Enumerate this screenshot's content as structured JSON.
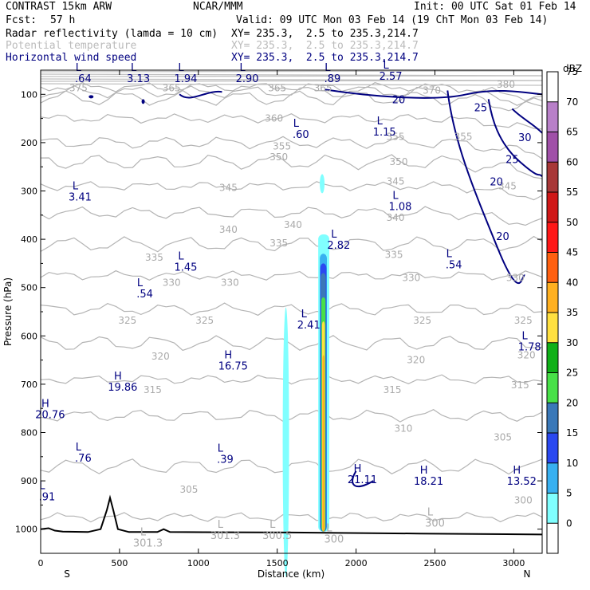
{
  "header": {
    "model": "CONTRAST 15km ARW",
    "org": "NCAR/MMM",
    "init": "Init: 00 UTC Sat 01 Feb 14",
    "fcst_label": "Fcst:",
    "fcst_value": "57 h",
    "valid": "Valid: 09 UTC Mon 03 Feb 14 (19 ChT Mon 03 Feb 14)",
    "field1": "Radar reflectivity (lamda = 10 cm)",
    "field2": "Potential temperature",
    "field3": "Horizontal wind speed",
    "xy1": "XY= 235.3,  2.5 to 235.3,214.7",
    "xy2": "XY= 235.3,  2.5 to 235.3,214.7",
    "xy3": "XY= 235.3,  2.5 to 235.3,214.7",
    "colors": {
      "field1": "#000000",
      "field2": "#bbbbbb",
      "field3": "#000080"
    }
  },
  "chart_data": {
    "type": "cross-section",
    "xlabel": "Distance (km)",
    "ylabel": "Pressure (hPa)",
    "x_ticks": [
      "0",
      "500",
      "1000",
      "1500",
      "2000",
      "2500",
      "3000"
    ],
    "y_ticks": [
      "100",
      "200",
      "300",
      "400",
      "500",
      "600",
      "700",
      "800",
      "900",
      "1000"
    ],
    "xlim": [
      0,
      3180
    ],
    "ylim": [
      1050,
      50
    ],
    "x_end_labels": {
      "left": "S",
      "right": "N"
    },
    "theta_labels": [
      {
        "v": "375",
        "x": 240,
        "p": 87
      },
      {
        "v": "365",
        "x": 830,
        "p": 87
      },
      {
        "v": "365",
        "x": 1500,
        "p": 87
      },
      {
        "v": "365",
        "x": 1790,
        "p": 87
      },
      {
        "v": "380",
        "x": 2950,
        "p": 80
      },
      {
        "v": "370",
        "x": 2480,
        "p": 92
      },
      {
        "v": "360",
        "x": 1480,
        "p": 150
      },
      {
        "v": "355",
        "x": 1530,
        "p": 208
      },
      {
        "v": "355",
        "x": 2250,
        "p": 188
      },
      {
        "v": "355",
        "x": 2680,
        "p": 188
      },
      {
        "v": "350",
        "x": 2270,
        "p": 240
      },
      {
        "v": "350",
        "x": 1510,
        "p": 230
      },
      {
        "v": "345",
        "x": 1190,
        "p": 293
      },
      {
        "v": "345",
        "x": 2250,
        "p": 280
      },
      {
        "v": "345",
        "x": 2960,
        "p": 290
      },
      {
        "v": "340",
        "x": 1600,
        "p": 370
      },
      {
        "v": "340",
        "x": 1190,
        "p": 380
      },
      {
        "v": "340",
        "x": 2250,
        "p": 355
      },
      {
        "v": "335",
        "x": 1510,
        "p": 408
      },
      {
        "v": "335",
        "x": 2240,
        "p": 432
      },
      {
        "v": "335",
        "x": 720,
        "p": 438
      },
      {
        "v": "330",
        "x": 830,
        "p": 490
      },
      {
        "v": "330",
        "x": 1200,
        "p": 490
      },
      {
        "v": "330",
        "x": 2350,
        "p": 480
      },
      {
        "v": "330",
        "x": 3010,
        "p": 480
      },
      {
        "v": "325",
        "x": 550,
        "p": 568
      },
      {
        "v": "325",
        "x": 1040,
        "p": 568
      },
      {
        "v": "325",
        "x": 2420,
        "p": 568
      },
      {
        "v": "325",
        "x": 3060,
        "p": 568
      },
      {
        "v": "320",
        "x": 760,
        "p": 642
      },
      {
        "v": "320",
        "x": 2380,
        "p": 650
      },
      {
        "v": "320",
        "x": 3080,
        "p": 640
      },
      {
        "v": "315",
        "x": 710,
        "p": 712
      },
      {
        "v": "315",
        "x": 2230,
        "p": 712
      },
      {
        "v": "315",
        "x": 3040,
        "p": 702
      },
      {
        "v": "310",
        "x": 2300,
        "p": 792
      },
      {
        "v": "305",
        "x": 940,
        "p": 918
      },
      {
        "v": "305",
        "x": 2930,
        "p": 810
      },
      {
        "v": "300",
        "x": 3060,
        "p": 940
      }
    ],
    "wind_labels": [
      {
        "v": "20",
        "x": 2270,
        "p": 112
      },
      {
        "v": "25",
        "x": 2790,
        "p": 128
      },
      {
        "v": "30",
        "x": 3070,
        "p": 190
      },
      {
        "v": "25",
        "x": 2990,
        "p": 236
      },
      {
        "v": "20",
        "x": 2890,
        "p": 282
      },
      {
        "v": "20",
        "x": 2930,
        "p": 395
      }
    ],
    "extrema": [
      {
        "t": "L",
        "v": ".64",
        "x": 270,
        "p": 75,
        "c": "#000080"
      },
      {
        "t": "L",
        "v": "3.13",
        "x": 620,
        "p": 75,
        "c": "#000080"
      },
      {
        "t": "L",
        "v": "1.94",
        "x": 920,
        "p": 75,
        "c": "#000080"
      },
      {
        "t": "L",
        "v": "2.90",
        "x": 1310,
        "p": 75,
        "c": "#000080"
      },
      {
        "t": "L",
        "v": ".89",
        "x": 1850,
        "p": 75,
        "c": "#000080"
      },
      {
        "t": "L",
        "v": "2.57",
        "x": 2220,
        "p": 70,
        "c": "#000080"
      },
      {
        "t": "L",
        "v": ".60",
        "x": 1650,
        "p": 190,
        "c": "#000080"
      },
      {
        "t": "L",
        "v": "1.15",
        "x": 2180,
        "p": 185,
        "c": "#000080"
      },
      {
        "t": "L",
        "v": "3.41",
        "x": 250,
        "p": 320,
        "c": "#000080"
      },
      {
        "t": "L",
        "v": "1.08",
        "x": 2280,
        "p": 340,
        "c": "#000080"
      },
      {
        "t": "L",
        "v": "2.82",
        "x": 1890,
        "p": 420,
        "c": "#000080"
      },
      {
        "t": "L",
        "v": "1.45",
        "x": 920,
        "p": 465,
        "c": "#000080"
      },
      {
        "t": "L",
        "v": ".54",
        "x": 2620,
        "p": 460,
        "c": "#000080"
      },
      {
        "t": "L",
        "v": ".54",
        "x": 660,
        "p": 520,
        "c": "#000080"
      },
      {
        "t": "L",
        "v": "2.41",
        "x": 1700,
        "p": 585,
        "c": "#000080"
      },
      {
        "t": "L",
        "v": "1.78",
        "x": 3100,
        "p": 630,
        "c": "#000080"
      },
      {
        "t": "H",
        "v": "16.75",
        "x": 1220,
        "p": 670,
        "c": "#000080"
      },
      {
        "t": "H",
        "v": "19.86",
        "x": 520,
        "p": 713,
        "c": "#000080"
      },
      {
        "t": "H",
        "v": "20.76",
        "x": 60,
        "p": 770,
        "c": "#000080"
      },
      {
        "t": "L",
        "v": ".76",
        "x": 270,
        "p": 860,
        "c": "#000080"
      },
      {
        "t": "L",
        "v": ".39",
        "x": 1170,
        "p": 863,
        "c": "#000080"
      },
      {
        "t": "H",
        "v": "21.11",
        "x": 2040,
        "p": 905,
        "c": "#000080"
      },
      {
        "t": "H",
        "v": "18.21",
        "x": 2460,
        "p": 908,
        "c": "#000080"
      },
      {
        "t": "H",
        "v": "13.52",
        "x": 3050,
        "p": 908,
        "c": "#000080"
      },
      {
        "t": "L",
        "v": ".91",
        "x": 40,
        "p": 940,
        "c": "#000080"
      },
      {
        "t": "L",
        "v": "301.3",
        "x": 1170,
        "p": 1020,
        "c": "#aaaaaa"
      },
      {
        "t": "L",
        "v": "300.5",
        "x": 1500,
        "p": 1020,
        "c": "#aaaaaa"
      },
      {
        "t": "L",
        "v": "301.3",
        "x": 680,
        "p": 1036,
        "c": "#aaaaaa"
      },
      {
        "t": "L",
        "v": "300",
        "x": 2500,
        "p": 995,
        "c": "#aaaaaa"
      },
      {
        "t": "L",
        "v": "300",
        "x": 1860,
        "p": 1028,
        "c": "#aaaaaa"
      }
    ],
    "colorbar": {
      "unit": "dBZ",
      "levels": [
        "0",
        "5",
        "10",
        "15",
        "20",
        "25",
        "30",
        "35",
        "40",
        "45",
        "50",
        "55",
        "60",
        "65",
        "70",
        "75"
      ],
      "colors": [
        "#ffffff",
        "#80ffff",
        "#38b0f0",
        "#2a48f0",
        "#3a78b8",
        "#48e048",
        "#10b018",
        "#ffe040",
        "#ffb020",
        "#ff6010",
        "#ff1818",
        "#d01818",
        "#a83838",
        "#a050a8",
        "#b880c8",
        "#ffffff"
      ]
    }
  }
}
